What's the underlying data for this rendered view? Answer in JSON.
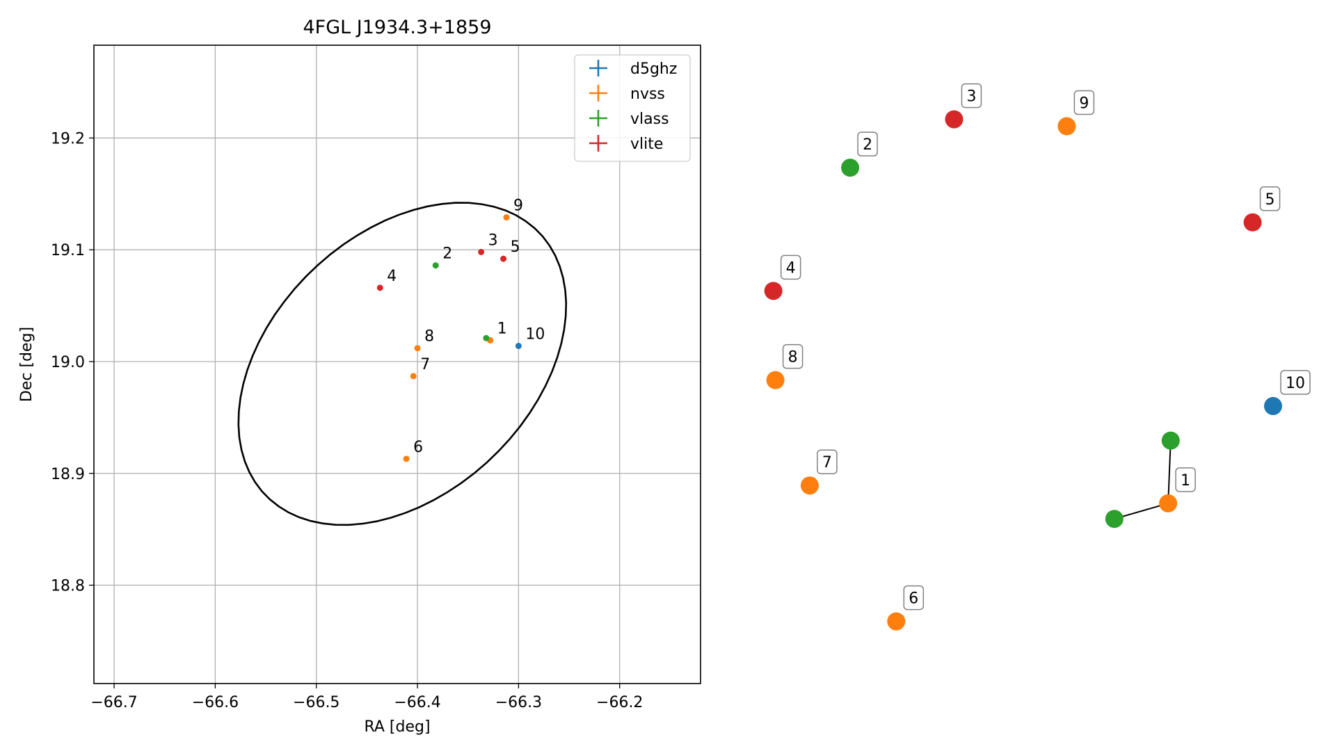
{
  "chart_data": [
    {
      "type": "scatter",
      "title": "4FGL J1934.3+1859",
      "xlabel": "RA [deg]",
      "ylabel": "Dec [deg]",
      "xlim": [
        -66.72,
        -66.12
      ],
      "ylim": [
        18.712,
        19.283
      ],
      "grid": true,
      "legend_position": "top-right",
      "x_ticks": [
        -66.7,
        -66.6,
        -66.5,
        -66.4,
        -66.3,
        -66.2
      ],
      "x_tick_labels": [
        "−66.7",
        "−66.6",
        "−66.5",
        "−66.4",
        "−66.3",
        "−66.2"
      ],
      "y_ticks": [
        18.8,
        18.9,
        19.0,
        19.1,
        19.2
      ],
      "y_tick_labels": [
        "18.8",
        "18.9",
        "19.0",
        "19.1",
        "19.2"
      ],
      "series": [
        {
          "name": "d5ghz",
          "color": "#1f77b4",
          "points": [
            {
              "label": "10",
              "x": -66.3,
              "y": 19.014
            }
          ]
        },
        {
          "name": "nvss",
          "color": "#ff7f0e",
          "points": [
            {
              "label": "1",
              "x": -66.328,
              "y": 19.019
            },
            {
              "label": "6",
              "x": -66.411,
              "y": 18.913
            },
            {
              "label": "7",
              "x": -66.404,
              "y": 18.987
            },
            {
              "label": "8",
              "x": -66.4,
              "y": 19.012
            },
            {
              "label": "9",
              "x": -66.312,
              "y": 19.129
            }
          ]
        },
        {
          "name": "vlass",
          "color": "#2ca02c",
          "points": [
            {
              "label": "1",
              "x": -66.332,
              "y": 19.021
            },
            {
              "label": "2",
              "x": -66.382,
              "y": 19.086
            }
          ]
        },
        {
          "name": "vlite",
          "color": "#d62728",
          "points": [
            {
              "label": "3",
              "x": -66.337,
              "y": 19.098
            },
            {
              "label": "4",
              "x": -66.437,
              "y": 19.066
            },
            {
              "label": "5",
              "x": -66.315,
              "y": 19.092
            }
          ]
        }
      ],
      "ellipse": {
        "center": [
          -66.415,
          18.998
        ],
        "semi_axes": [
          0.18,
          0.121
        ],
        "angle_deg": 36
      }
    },
    {
      "type": "network",
      "nodes": [
        {
          "label": "1",
          "color": "#ff7f0e",
          "x": 0.795,
          "y": 0.255
        },
        {
          "label": "",
          "color": "#2ca02c",
          "x": 0.8,
          "y": 0.364
        },
        {
          "label": "",
          "color": "#2ca02c",
          "x": 0.69,
          "y": 0.228
        },
        {
          "label": "2",
          "color": "#2ca02c",
          "x": 0.174,
          "y": 0.838
        },
        {
          "label": "3",
          "color": "#d62728",
          "x": 0.377,
          "y": 0.922
        },
        {
          "label": "4",
          "color": "#d62728",
          "x": 0.024,
          "y": 0.624
        },
        {
          "label": "5",
          "color": "#d62728",
          "x": 0.96,
          "y": 0.743
        },
        {
          "label": "6",
          "color": "#ff7f0e",
          "x": 0.264,
          "y": 0.05
        },
        {
          "label": "7",
          "color": "#ff7f0e",
          "x": 0.095,
          "y": 0.286
        },
        {
          "label": "8",
          "color": "#ff7f0e",
          "x": 0.028,
          "y": 0.469
        },
        {
          "label": "9",
          "color": "#ff7f0e",
          "x": 0.597,
          "y": 0.91
        },
        {
          "label": "10",
          "color": "#1f77b4",
          "x": 1.0,
          "y": 0.424
        }
      ],
      "edges": [
        [
          0,
          1
        ],
        [
          0,
          2
        ]
      ]
    }
  ]
}
